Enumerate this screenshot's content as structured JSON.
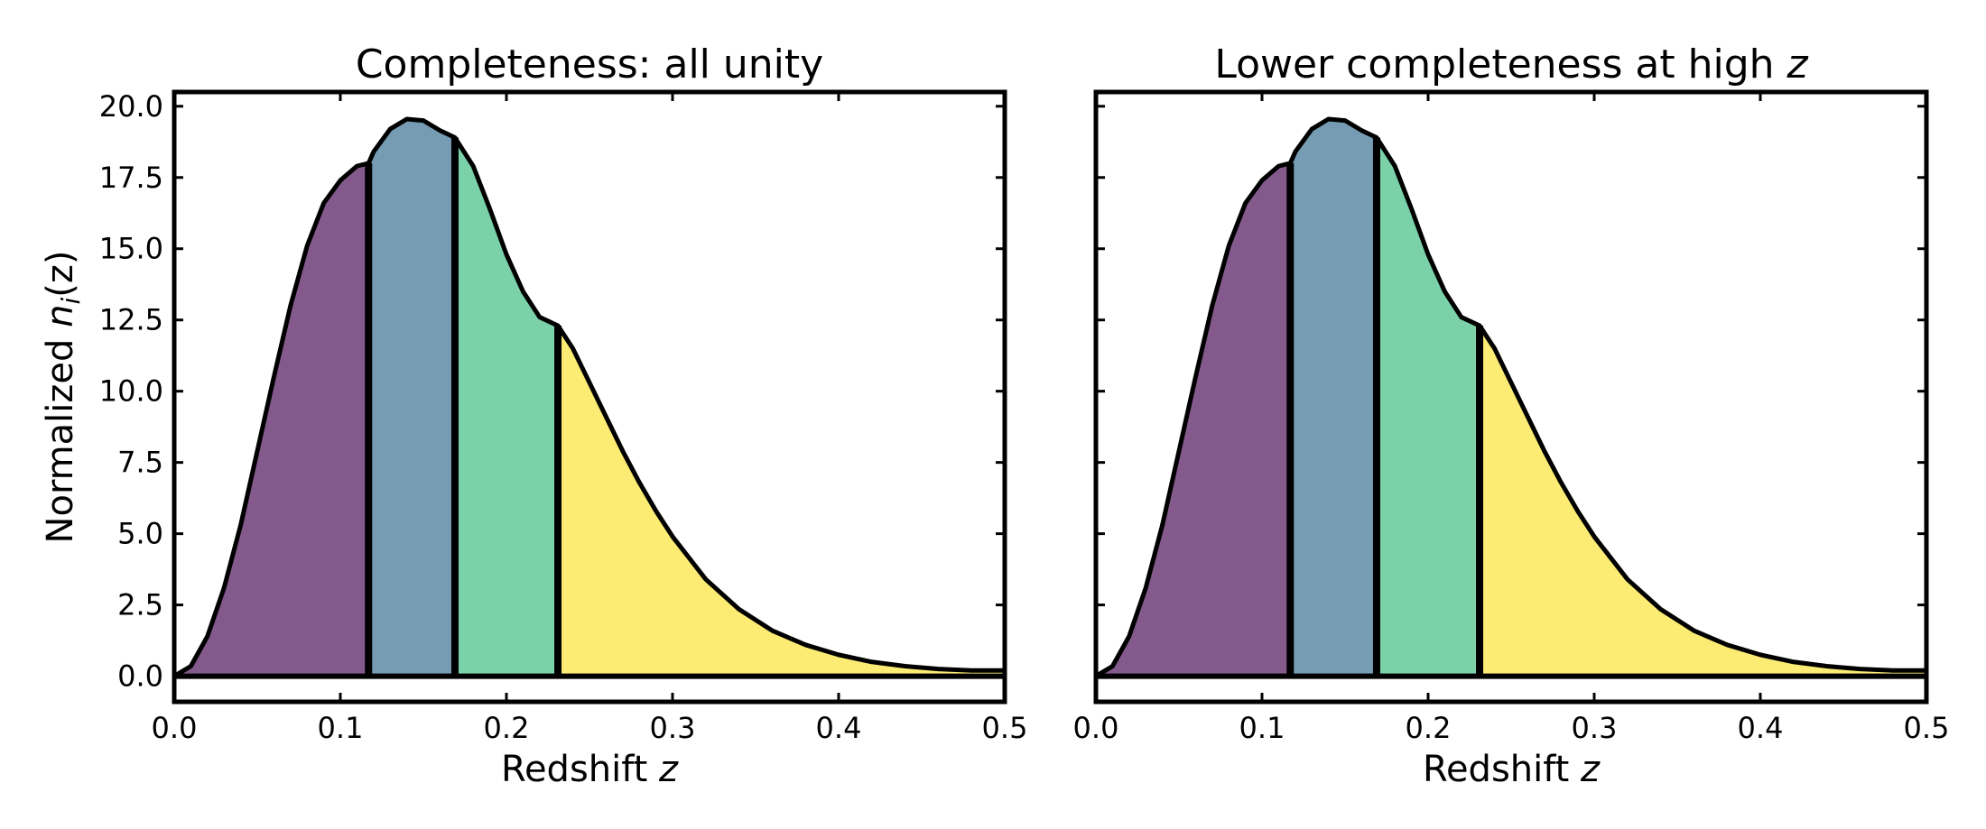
{
  "chart_data": [
    {
      "type": "area",
      "title": "Completeness: all unity",
      "title_suffix": "",
      "xlabel": "Redshift",
      "xlabel_var": "z",
      "ylabel": "Normalized",
      "ylabel_math": "n",
      "ylabel_sub": "i",
      "ylabel_tail": "(z)",
      "xlim": [
        0,
        0.5
      ],
      "ylim": [
        -0.9,
        20.5
      ],
      "xticks": [
        "0.0",
        "0.1",
        "0.2",
        "0.3",
        "0.4",
        "0.5"
      ],
      "yticks": [
        "0.0",
        "2.5",
        "5.0",
        "7.5",
        "10.0",
        "12.5",
        "15.0",
        "17.5",
        "20.0"
      ],
      "show_yticklabels": true,
      "curve": {
        "x": [
          0.0,
          0.01,
          0.02,
          0.03,
          0.04,
          0.05,
          0.06,
          0.07,
          0.08,
          0.09,
          0.1,
          0.11,
          0.117,
          0.12,
          0.13,
          0.14,
          0.15,
          0.16,
          0.169,
          0.18,
          0.19,
          0.2,
          0.21,
          0.22,
          0.231,
          0.24,
          0.25,
          0.26,
          0.27,
          0.28,
          0.29,
          0.3,
          0.32,
          0.34,
          0.36,
          0.38,
          0.4,
          0.42,
          0.44,
          0.46,
          0.48,
          0.5
        ],
        "y": [
          0.0,
          0.35,
          1.4,
          3.1,
          5.3,
          7.9,
          10.5,
          13.0,
          15.1,
          16.6,
          17.4,
          17.9,
          18.0,
          18.4,
          19.2,
          19.55,
          19.5,
          19.15,
          18.9,
          17.9,
          16.4,
          14.8,
          13.5,
          12.6,
          12.3,
          11.5,
          10.3,
          9.1,
          7.9,
          6.8,
          5.8,
          4.9,
          3.4,
          2.35,
          1.6,
          1.1,
          0.75,
          0.5,
          0.35,
          0.25,
          0.2,
          0.2
        ]
      },
      "bins": [
        {
          "z_min": 0.0,
          "z_max": 0.117,
          "color": "#845a8c"
        },
        {
          "z_min": 0.117,
          "z_max": 0.169,
          "color": "#769cb4"
        },
        {
          "z_min": 0.169,
          "z_max": 0.231,
          "color": "#7bd1a8"
        },
        {
          "z_min": 0.231,
          "z_max": 0.5,
          "color": "#fcec74"
        }
      ]
    },
    {
      "type": "area",
      "title": "Lower completeness at high ",
      "title_suffix": "z",
      "xlabel": "Redshift",
      "xlabel_var": "z",
      "ylabel": "",
      "ylabel_math": "",
      "ylabel_sub": "",
      "ylabel_tail": "",
      "xlim": [
        0,
        0.5
      ],
      "ylim": [
        -0.9,
        20.5
      ],
      "xticks": [
        "0.0",
        "0.1",
        "0.2",
        "0.3",
        "0.4",
        "0.5"
      ],
      "yticks": [
        "0.0",
        "2.5",
        "5.0",
        "7.5",
        "10.0",
        "12.5",
        "15.0",
        "17.5",
        "20.0"
      ],
      "show_yticklabels": false,
      "curve": {
        "x": [
          0.0,
          0.01,
          0.02,
          0.03,
          0.04,
          0.05,
          0.06,
          0.07,
          0.08,
          0.09,
          0.1,
          0.11,
          0.117,
          0.12,
          0.13,
          0.14,
          0.15,
          0.16,
          0.169,
          0.18,
          0.19,
          0.2,
          0.21,
          0.22,
          0.231,
          0.24,
          0.25,
          0.26,
          0.27,
          0.28,
          0.29,
          0.3,
          0.32,
          0.34,
          0.36,
          0.38,
          0.4,
          0.42,
          0.44,
          0.46,
          0.48,
          0.5
        ],
        "y": [
          0.0,
          0.35,
          1.4,
          3.1,
          5.3,
          7.9,
          10.5,
          13.0,
          15.1,
          16.6,
          17.4,
          17.9,
          18.0,
          18.4,
          19.2,
          19.55,
          19.5,
          19.15,
          18.9,
          17.9,
          16.4,
          14.8,
          13.5,
          12.6,
          12.3,
          11.5,
          10.3,
          9.1,
          7.9,
          6.8,
          5.8,
          4.9,
          3.4,
          2.35,
          1.6,
          1.1,
          0.75,
          0.5,
          0.35,
          0.25,
          0.2,
          0.2
        ]
      },
      "bins": [
        {
          "z_min": 0.0,
          "z_max": 0.117,
          "color": "#845a8c"
        },
        {
          "z_min": 0.117,
          "z_max": 0.169,
          "color": "#769cb4"
        },
        {
          "z_min": 0.169,
          "z_max": 0.231,
          "color": "#7bd1a8"
        },
        {
          "z_min": 0.231,
          "z_max": 0.5,
          "color": "#fcec74"
        }
      ]
    }
  ]
}
